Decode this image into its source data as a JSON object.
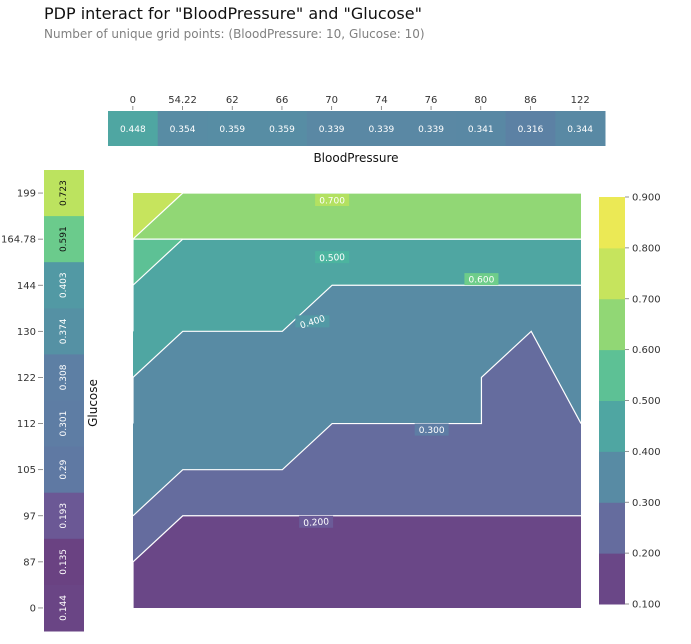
{
  "header": {
    "title": "PDP interact for \"BloodPressure\" and \"Glucose\"",
    "subtitle": "Number of unique grid points: (BloodPressure: 10, Glucose: 10)"
  },
  "chart_data": {
    "type": "heatmap",
    "title": "PDP interact for \"BloodPressure\" and \"Glucose\"",
    "subtitle": "Number of unique grid points: (BloodPressure: 10, Glucose: 10)",
    "xlabel": "BloodPressure",
    "ylabel": "Glucose",
    "top_strip": {
      "feature": "BloodPressure",
      "ticks": [
        "0",
        "54.22",
        "62",
        "66",
        "70",
        "74",
        "76",
        "80",
        "86",
        "122"
      ],
      "values": [
        0.448,
        0.354,
        0.359,
        0.359,
        0.339,
        0.339,
        0.339,
        0.341,
        0.316,
        0.344
      ]
    },
    "left_strip": {
      "feature": "Glucose",
      "ticks": [
        "199",
        "164.78",
        "144",
        "130",
        "122",
        "112",
        "105",
        "97",
        "87",
        "0"
      ],
      "values": [
        0.723,
        0.591,
        0.403,
        0.374,
        0.308,
        0.301,
        0.29,
        0.193,
        0.135,
        0.144
      ]
    },
    "contour": {
      "levels": [
        0.1,
        0.2,
        0.3,
        0.4,
        0.5,
        0.6,
        0.7,
        0.8,
        0.9
      ],
      "line_labels": [
        "0.200",
        "0.300",
        "0.400",
        "0.500",
        "0.600",
        "0.700"
      ],
      "boundaries": [
        {
          "level": 0.2,
          "bp": [
            0,
            0,
            54.22,
            62,
            66,
            70,
            74,
            76,
            80,
            86,
            122
          ],
          "glucose": [
            0,
            87,
            97,
            97,
            97,
            97,
            97,
            97,
            97,
            97,
            97
          ]
        },
        {
          "level": 0.3,
          "bp": [
            0,
            54.22,
            54.22,
            62,
            66,
            70,
            74,
            76,
            80,
            80,
            86,
            122
          ],
          "glucose": [
            97,
            105,
            105,
            105,
            105,
            112,
            112,
            112,
            112,
            122,
            130,
            112
          ]
        },
        {
          "level": 0.4,
          "bp": [
            0,
            0,
            54.22,
            54.22,
            62,
            66,
            70,
            74,
            76,
            80,
            86,
            122
          ],
          "glucose": [
            112,
            122,
            130,
            130,
            130,
            130,
            144,
            144,
            144,
            144,
            144,
            144
          ]
        },
        {
          "level": 0.5,
          "bp": [
            0,
            0,
            54.22,
            62,
            66,
            70,
            74,
            76,
            80,
            86,
            122
          ],
          "glucose": [
            130,
            144,
            164.78,
            164.78,
            164.78,
            164.78,
            164.78,
            164.78,
            164.78,
            164.78,
            164.78
          ]
        },
        {
          "level": 0.6,
          "bp": [
            0,
            0,
            54.22,
            62,
            66,
            70,
            74,
            76,
            80,
            86,
            122
          ],
          "glucose": [
            144,
            164.78,
            164.78,
            164.78,
            164.78,
            164.78,
            164.78,
            164.78,
            164.78,
            164.78,
            164.78
          ]
        },
        {
          "level": 0.7,
          "bp": [
            0,
            54.22,
            62,
            66,
            70,
            74,
            76,
            80,
            86,
            122
          ],
          "glucose": [
            164.78,
            199,
            199,
            199,
            199,
            199,
            199,
            199,
            199,
            199
          ]
        }
      ]
    },
    "colorbar": {
      "ticks": [
        "0.100",
        "0.200",
        "0.300",
        "0.400",
        "0.500",
        "0.600",
        "0.700",
        "0.800",
        "0.900"
      ],
      "range": [
        0.1,
        0.9
      ]
    },
    "colormap": "viridis"
  }
}
